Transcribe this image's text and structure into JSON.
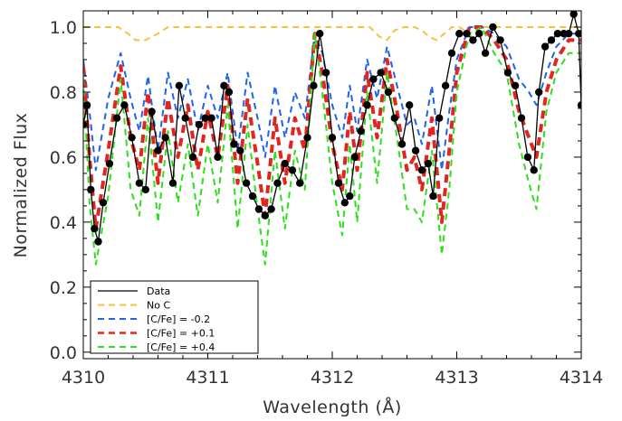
{
  "chart_data": {
    "type": "line",
    "title": "",
    "xlabel": "Wavelength (Å)",
    "ylabel": "Normalized Flux",
    "xlim": [
      4310,
      4314
    ],
    "ylim": [
      -0.02,
      1.05
    ],
    "grid": false,
    "legend_position": "bottom-left",
    "x_ticks": [
      4310,
      4311,
      4312,
      4313,
      4314
    ],
    "x_tick_labels": [
      "4310",
      "4311",
      "4312",
      "4313",
      "4314"
    ],
    "y_ticks": [
      0.0,
      0.2,
      0.4,
      0.6,
      0.8,
      1.0
    ],
    "y_tick_labels": [
      "0.0",
      "0.2",
      "0.4",
      "0.6",
      "0.8",
      "1.0"
    ],
    "series": [
      {
        "name": "Data",
        "color": "#000000",
        "style": "solid-markers",
        "x": [
          4310.0,
          4310.03,
          4310.06,
          4310.09,
          4310.12,
          4310.16,
          4310.21,
          4310.27,
          4310.33,
          4310.39,
          4310.45,
          4310.5,
          4310.55,
          4310.6,
          4310.66,
          4310.72,
          4310.77,
          4310.82,
          4310.88,
          4310.93,
          4310.98,
          4311.03,
          4311.08,
          4311.13,
          4311.17,
          4311.21,
          4311.26,
          4311.31,
          4311.36,
          4311.41,
          4311.46,
          4311.51,
          4311.56,
          4311.62,
          4311.68,
          4311.74,
          4311.8,
          4311.85,
          4311.9,
          4311.95,
          4312.0,
          4312.05,
          4312.1,
          4312.14,
          4312.18,
          4312.23,
          4312.28,
          4312.33,
          4312.39,
          4312.45,
          4312.5,
          4312.56,
          4312.62,
          4312.67,
          4312.72,
          4312.77,
          4312.81,
          4312.86,
          4312.91,
          4312.96,
          4313.02,
          4313.08,
          4313.13,
          4313.18,
          4313.23,
          4313.29,
          4313.35,
          4313.41,
          4313.47,
          4313.52,
          4313.57,
          4313.62,
          4313.66,
          4313.71,
          4313.76,
          4313.81,
          4313.86,
          4313.9,
          4313.94,
          4313.98,
          4314.0
        ],
        "y": [
          0.7,
          0.76,
          0.5,
          0.38,
          0.34,
          0.46,
          0.58,
          0.72,
          0.76,
          0.66,
          0.52,
          0.5,
          0.74,
          0.62,
          0.66,
          0.52,
          0.82,
          0.72,
          0.6,
          0.7,
          0.72,
          0.72,
          0.6,
          0.82,
          0.8,
          0.64,
          0.62,
          0.52,
          0.48,
          0.44,
          0.42,
          0.44,
          0.52,
          0.58,
          0.56,
          0.52,
          0.66,
          0.82,
          0.98,
          0.86,
          0.66,
          0.52,
          0.46,
          0.48,
          0.6,
          0.68,
          0.76,
          0.84,
          0.86,
          0.8,
          0.72,
          0.64,
          0.76,
          0.62,
          0.56,
          0.58,
          0.48,
          0.72,
          0.82,
          0.92,
          0.98,
          0.98,
          0.96,
          0.98,
          0.92,
          1.0,
          0.96,
          0.86,
          0.82,
          0.72,
          0.6,
          0.56,
          0.8,
          0.94,
          0.96,
          0.98,
          0.98,
          0.98,
          1.04,
          0.98,
          0.76
        ]
      },
      {
        "name": "No C",
        "color": "#f7c23a",
        "style": "dashed",
        "x": [
          4310.0,
          4310.28,
          4310.36,
          4310.42,
          4310.5,
          4310.6,
          4310.68,
          4311.0,
          4312.3,
          4312.38,
          4312.44,
          4312.5,
          4312.58,
          4312.66,
          4312.72,
          4312.78,
          4312.84,
          4312.9,
          4312.96,
          4313.02,
          4313.1,
          4313.12,
          4313.2,
          4313.34,
          4313.42,
          4313.55,
          4313.62,
          4313.7,
          4314.0
        ],
        "y": [
          1.0,
          1.0,
          0.98,
          0.96,
          0.96,
          0.98,
          1.0,
          1.0,
          1.0,
          0.97,
          0.96,
          0.99,
          1.0,
          1.0,
          0.99,
          0.97,
          0.96,
          0.98,
          1.0,
          1.0,
          0.98,
          0.97,
          1.0,
          1.0,
          1.0,
          1.0,
          1.0,
          1.0,
          1.0
        ]
      },
      {
        "name": "[C/Fe] = -0.2",
        "color": "#1e64ea",
        "style": "dashed",
        "x": [
          4310.0,
          4310.05,
          4310.1,
          4310.2,
          4310.3,
          4310.38,
          4310.45,
          4310.52,
          4310.6,
          4310.68,
          4310.76,
          4310.84,
          4310.92,
          4311.0,
          4311.08,
          4311.16,
          4311.24,
          4311.32,
          4311.4,
          4311.46,
          4311.54,
          4311.62,
          4311.7,
          4311.78,
          4311.86,
          4311.92,
          4312.0,
          4312.08,
          4312.14,
          4312.2,
          4312.28,
          4312.36,
          4312.44,
          4312.52,
          4312.6,
          4312.66,
          4312.72,
          4312.8,
          4312.88,
          4312.94,
          4313.0,
          4313.1,
          4313.2,
          4313.3,
          4313.4,
          4313.5,
          4313.58,
          4313.64,
          4313.72,
          4313.8,
          4313.9,
          4314.0
        ],
        "y": [
          0.9,
          0.74,
          0.56,
          0.78,
          0.92,
          0.78,
          0.68,
          0.85,
          0.62,
          0.86,
          0.72,
          0.84,
          0.68,
          0.82,
          0.72,
          0.86,
          0.62,
          0.86,
          0.72,
          0.6,
          0.82,
          0.66,
          0.8,
          0.72,
          0.98,
          0.92,
          0.76,
          0.66,
          0.82,
          0.68,
          0.9,
          0.78,
          0.94,
          0.82,
          0.7,
          0.72,
          0.64,
          0.82,
          0.56,
          0.74,
          0.9,
          1.0,
          1.0,
          0.98,
          0.94,
          0.84,
          0.8,
          0.76,
          0.86,
          0.94,
          0.98,
          0.98
        ]
      },
      {
        "name": "[C/Fe] = +0.1",
        "color": "#e0271f",
        "style": "dashed-thick",
        "x": [
          4310.0,
          4310.05,
          4310.1,
          4310.2,
          4310.3,
          4310.38,
          4310.45,
          4310.52,
          4310.6,
          4310.68,
          4310.76,
          4310.84,
          4310.92,
          4311.0,
          4311.08,
          4311.16,
          4311.24,
          4311.32,
          4311.4,
          4311.46,
          4311.54,
          4311.62,
          4311.7,
          4311.78,
          4311.86,
          4311.92,
          4312.0,
          4312.08,
          4312.14,
          4312.2,
          4312.28,
          4312.36,
          4312.44,
          4312.52,
          4312.6,
          4312.66,
          4312.72,
          4312.8,
          4312.88,
          4312.94,
          4313.0,
          4313.1,
          4313.2,
          4313.3,
          4313.4,
          4313.5,
          4313.58,
          4313.64,
          4313.72,
          4313.8,
          4313.9,
          4314.0
        ],
        "y": [
          0.88,
          0.6,
          0.38,
          0.62,
          0.88,
          0.66,
          0.56,
          0.8,
          0.52,
          0.78,
          0.6,
          0.76,
          0.56,
          0.74,
          0.6,
          0.82,
          0.52,
          0.78,
          0.58,
          0.42,
          0.72,
          0.52,
          0.72,
          0.62,
          0.98,
          0.86,
          0.64,
          0.5,
          0.74,
          0.56,
          0.86,
          0.66,
          0.9,
          0.74,
          0.56,
          0.6,
          0.5,
          0.72,
          0.4,
          0.62,
          0.86,
          1.0,
          1.0,
          0.96,
          0.9,
          0.74,
          0.66,
          0.6,
          0.8,
          0.9,
          0.96,
          0.96
        ]
      },
      {
        "name": "[C/Fe] = +0.4",
        "color": "#2ee01c",
        "style": "dashed",
        "x": [
          4310.0,
          4310.05,
          4310.1,
          4310.2,
          4310.3,
          4310.38,
          4310.45,
          4310.52,
          4310.6,
          4310.68,
          4310.76,
          4310.84,
          4310.92,
          4311.0,
          4311.08,
          4311.16,
          4311.24,
          4311.32,
          4311.4,
          4311.46,
          4311.54,
          4311.62,
          4311.7,
          4311.78,
          4311.86,
          4311.92,
          4312.0,
          4312.08,
          4312.14,
          4312.2,
          4312.28,
          4312.36,
          4312.44,
          4312.52,
          4312.6,
          4312.66,
          4312.72,
          4312.8,
          4312.88,
          4312.94,
          4313.0,
          4313.1,
          4313.2,
          4313.3,
          4313.4,
          4313.5,
          4313.58,
          4313.64,
          4313.72,
          4313.8,
          4313.9,
          4314.0
        ],
        "y": [
          0.84,
          0.46,
          0.27,
          0.48,
          0.84,
          0.5,
          0.42,
          0.72,
          0.4,
          0.68,
          0.46,
          0.64,
          0.42,
          0.64,
          0.46,
          0.76,
          0.38,
          0.7,
          0.44,
          0.27,
          0.62,
          0.38,
          0.62,
          0.5,
          0.98,
          0.8,
          0.52,
          0.36,
          0.64,
          0.4,
          0.8,
          0.52,
          0.86,
          0.66,
          0.44,
          0.44,
          0.4,
          0.62,
          0.3,
          0.5,
          0.8,
          0.98,
          1.0,
          0.92,
          0.86,
          0.64,
          0.52,
          0.44,
          0.74,
          0.86,
          0.92,
          0.92
        ]
      }
    ]
  }
}
